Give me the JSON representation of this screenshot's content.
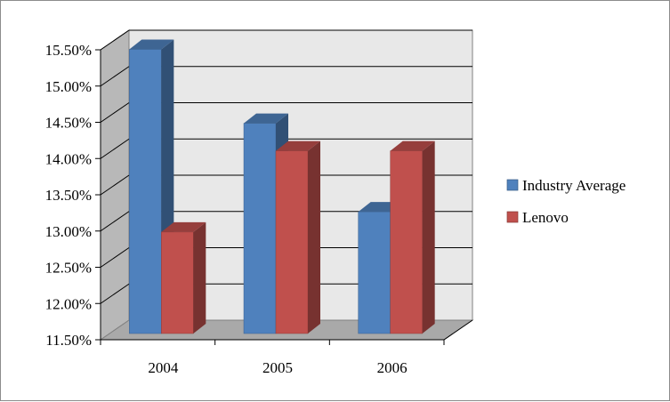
{
  "chart_data": {
    "type": "bar",
    "style": "3d-clustered-column",
    "categories": [
      "2004",
      "2005",
      "2006"
    ],
    "series": [
      {
        "name": "Industry Average",
        "values": [
          15.42,
          14.4,
          13.18
        ],
        "color": "#4f81bd"
      },
      {
        "name": "Lenovo",
        "values": [
          12.9,
          14.02,
          14.02
        ],
        "color": "#c0504d"
      }
    ],
    "yticks": [
      "11.50%",
      "12.00%",
      "12.50%",
      "13.00%",
      "13.50%",
      "14.00%",
      "14.50%",
      "15.00%",
      "15.50%"
    ],
    "ylim": [
      11.5,
      15.5
    ],
    "grid": true,
    "legend_position": "right"
  }
}
